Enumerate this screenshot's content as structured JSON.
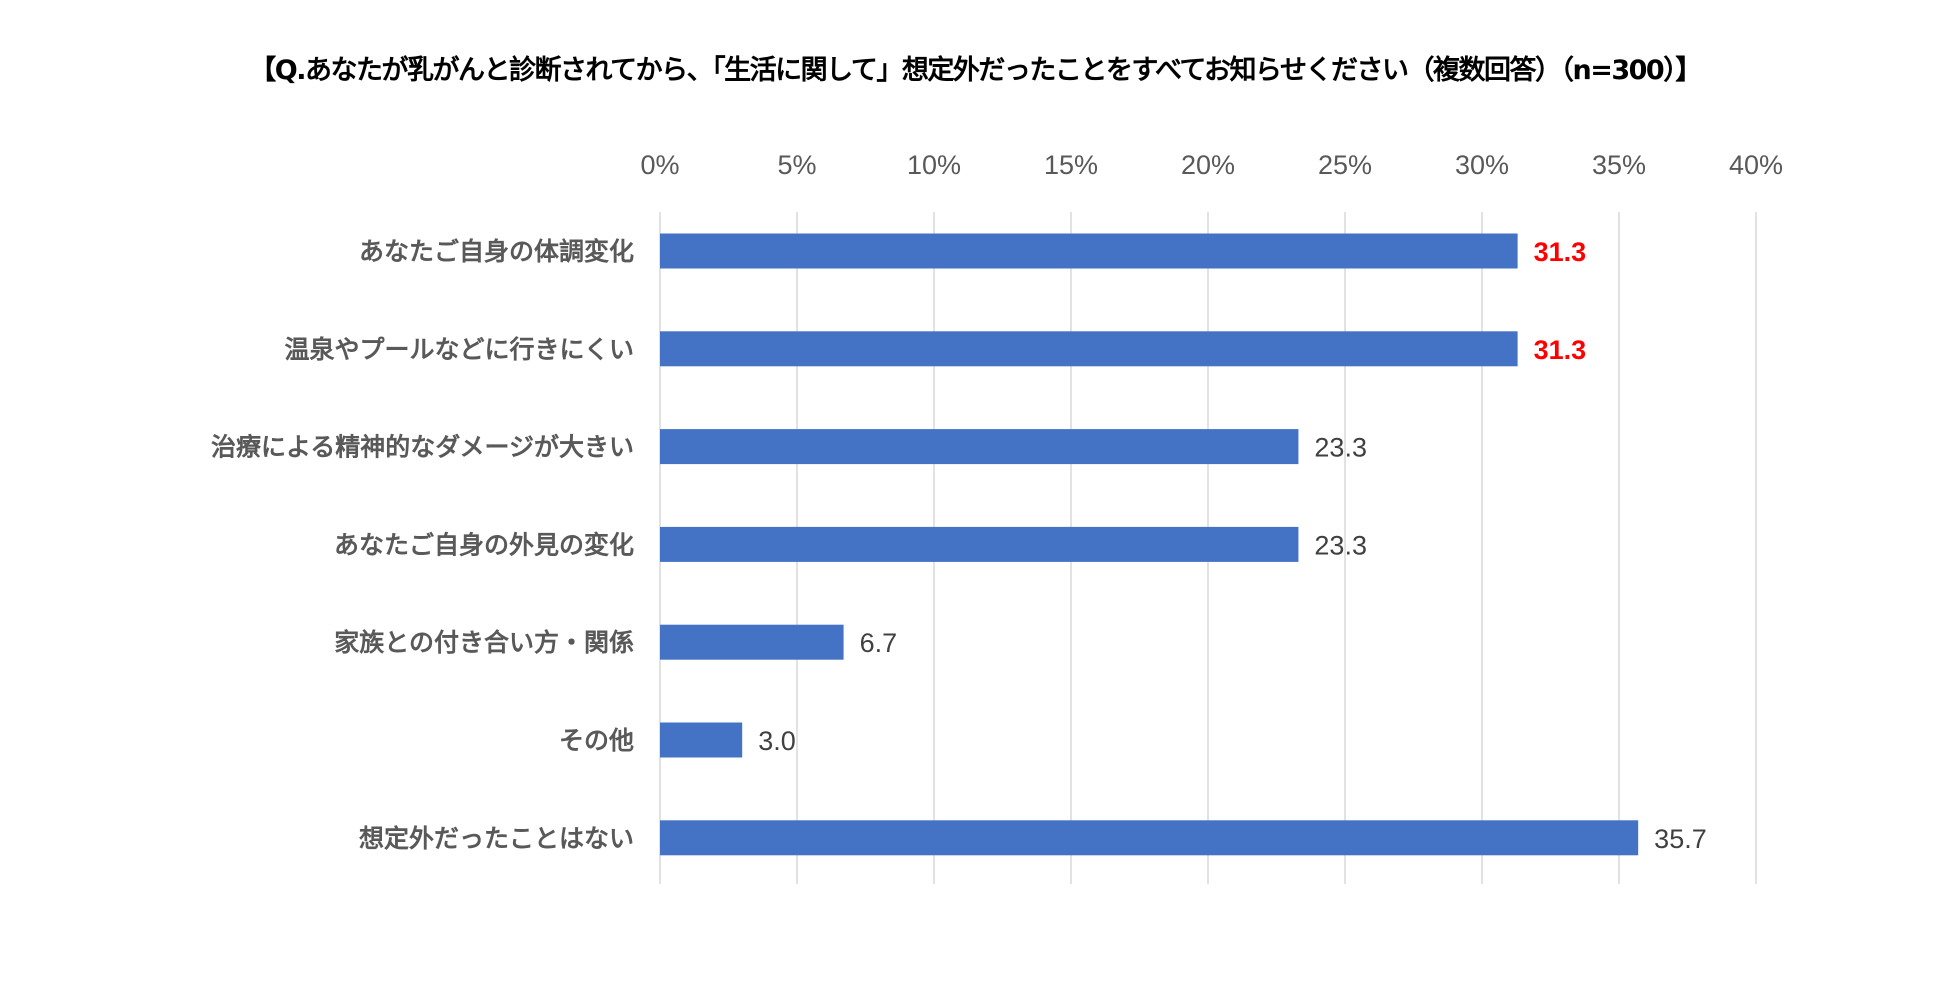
{
  "chart_data": {
    "type": "bar",
    "orientation": "horizontal",
    "title": "【Q.あなたが乳がんと診断されてから、「生活に関して」想定外だったことをすべてお知らせください（複数回答）（n=300）】",
    "xlabel": "",
    "ylabel": "",
    "xlim": [
      0,
      40
    ],
    "x_ticks": [
      "0%",
      "5%",
      "10%",
      "15%",
      "20%",
      "25%",
      "30%",
      "35%",
      "40%"
    ],
    "x_axis_position": "top",
    "grid": true,
    "categories": [
      "あなたご自身の体調変化",
      "温泉やプールなどに行きにくい",
      "治療による精神的なダメージが大きい",
      "あなたご自身の外見の変化",
      "家族との付き合い方・関係",
      "その他",
      "想定外だったことはない"
    ],
    "values": [
      31.3,
      31.3,
      23.3,
      23.3,
      6.7,
      3.0,
      35.7
    ],
    "value_labels": [
      "31.3",
      "31.3",
      "23.3",
      "23.3",
      "6.7",
      "3.0",
      "35.7"
    ],
    "highlighted": [
      true,
      true,
      false,
      false,
      false,
      false,
      false
    ],
    "colors": {
      "bar": "#4472c4",
      "highlight_label": "#ff0000",
      "label": "#404040",
      "grid": "#d9d9d9"
    }
  }
}
